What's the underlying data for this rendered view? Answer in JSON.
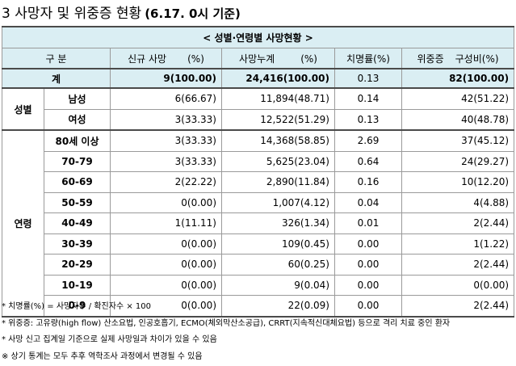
{
  "title": {
    "text": "3 사망자 및 위중증 현황",
    "date": "(6.17. 0시 기준)"
  },
  "table": {
    "subtitle": "< 성별·연령별 사망현황 >",
    "headers": {
      "category": "구 분",
      "new_deaths": "신규 사망",
      "new_pct": "(%)",
      "cum_deaths": "사망누계",
      "cum_pct": "(%)",
      "fatality": "치명률(%)",
      "critical": "위중증",
      "ratio": "구성비(%)"
    },
    "total": {
      "label": "계",
      "new": "9(100.00)",
      "cum": "24,416(100.00)",
      "fatality": "0.13",
      "critical": "82(100.00)"
    },
    "sex_group": "성별",
    "sex_rows": [
      {
        "label": "남성",
        "new": "6(66.67)",
        "cum": "11,894(48.71)",
        "fatality": "0.14",
        "critical": "42(51.22)"
      },
      {
        "label": "여성",
        "new": "3(33.33)",
        "cum": "12,522(51.29)",
        "fatality": "0.13",
        "critical": "40(48.78)"
      }
    ],
    "age_group": "연령",
    "age_rows": [
      {
        "label": "80세 이상",
        "new": "3(33.33)",
        "cum": "14,368(58.85)",
        "fatality": "2.69",
        "critical": "37(45.12)"
      },
      {
        "label": "70-79",
        "new": "3(33.33)",
        "cum": "5,625(23.04)",
        "fatality": "0.64",
        "critical": "24(29.27)"
      },
      {
        "label": "60-69",
        "new": "2(22.22)",
        "cum": "2,890(11.84)",
        "fatality": "0.16",
        "critical": "10(12.20)"
      },
      {
        "label": "50-59",
        "new": "0(0.00)",
        "cum": "1,007(4.12)",
        "fatality": "0.04",
        "critical": "4(4.88)"
      },
      {
        "label": "40-49",
        "new": "1(11.11)",
        "cum": "326(1.34)",
        "fatality": "0.01",
        "critical": "2(2.44)"
      },
      {
        "label": "30-39",
        "new": "0(0.00)",
        "cum": "109(0.45)",
        "fatality": "0.00",
        "critical": "1(1.22)"
      },
      {
        "label": "20-29",
        "new": "0(0.00)",
        "cum": "60(0.25)",
        "fatality": "0.00",
        "critical": "2(2.44)"
      },
      {
        "label": "10-19",
        "new": "0(0.00)",
        "cum": "9(0.04)",
        "fatality": "0.00",
        "critical": "0(0.00)"
      },
      {
        "label": "0-9",
        "new": "0(0.00)",
        "cum": "22(0.09)",
        "fatality": "0.00",
        "critical": "2(2.44)"
      }
    ]
  },
  "notes": [
    "* 치명률(%) = 사망자수 / 확진자수 × 100",
    "* 위중증: 고유량(high flow) 산소요법, 인공호흡기, ECMO(체외막산소공급), CRRT(지속적신대체요법) 등으로 격리 치료 중인 환자",
    "* 사망 신고 집계일 기준으로 실제 사망일과 차이가 있을 수 있음",
    "※ 상기 통계는 모두 추후 역학조사 과정에서 변경될 수 있음"
  ]
}
